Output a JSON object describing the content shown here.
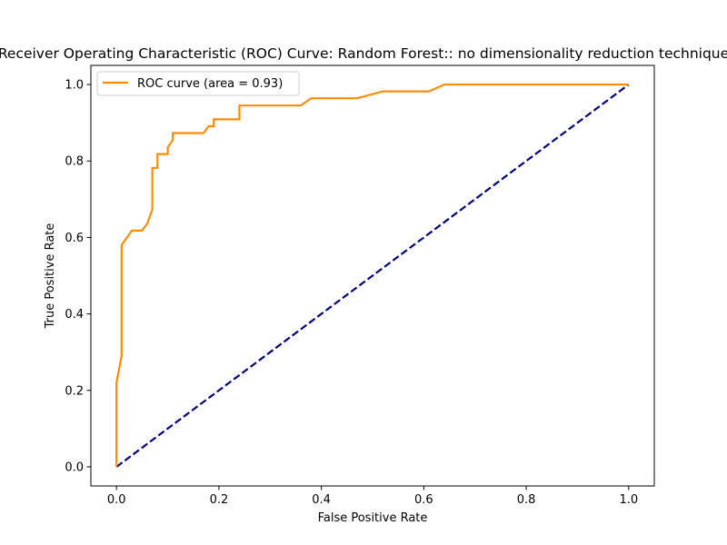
{
  "chart_data": {
    "type": "line",
    "title": "Receiver Operating Characteristic (ROC) Curve: Random Forest:: no dimensionality reduction technique",
    "xlabel": "False Positive Rate",
    "ylabel": "True Positive Rate",
    "xlim": [
      -0.05,
      1.05
    ],
    "ylim": [
      -0.05,
      1.05
    ],
    "xticks": [
      "0.0",
      "0.2",
      "0.4",
      "0.6",
      "0.8",
      "1.0"
    ],
    "yticks": [
      "0.0",
      "0.2",
      "0.4",
      "0.6",
      "0.8",
      "1.0"
    ],
    "grid": false,
    "legend": {
      "placement": "top-left"
    },
    "series": [
      {
        "name": "ROC curve (area = 0.93)",
        "color": "#ff8c00",
        "style": "solid",
        "x": [
          0.0,
          0.0,
          0.01,
          0.01,
          0.03,
          0.05,
          0.06,
          0.07,
          0.07,
          0.08,
          0.08,
          0.1,
          0.1,
          0.11,
          0.11,
          0.17,
          0.18,
          0.19,
          0.19,
          0.24,
          0.24,
          0.36,
          0.38,
          0.47,
          0.52,
          0.61,
          0.64,
          1.0
        ],
        "y": [
          0.0,
          0.22,
          0.29,
          0.58,
          0.618,
          0.618,
          0.636,
          0.673,
          0.782,
          0.782,
          0.818,
          0.818,
          0.836,
          0.855,
          0.873,
          0.873,
          0.891,
          0.891,
          0.909,
          0.909,
          0.945,
          0.945,
          0.964,
          0.964,
          0.982,
          0.982,
          1.0,
          1.0
        ]
      },
      {
        "color": "#000080",
        "style": "dashed",
        "x": [
          0.0,
          1.0
        ],
        "y": [
          0.0,
          1.0
        ]
      }
    ]
  }
}
